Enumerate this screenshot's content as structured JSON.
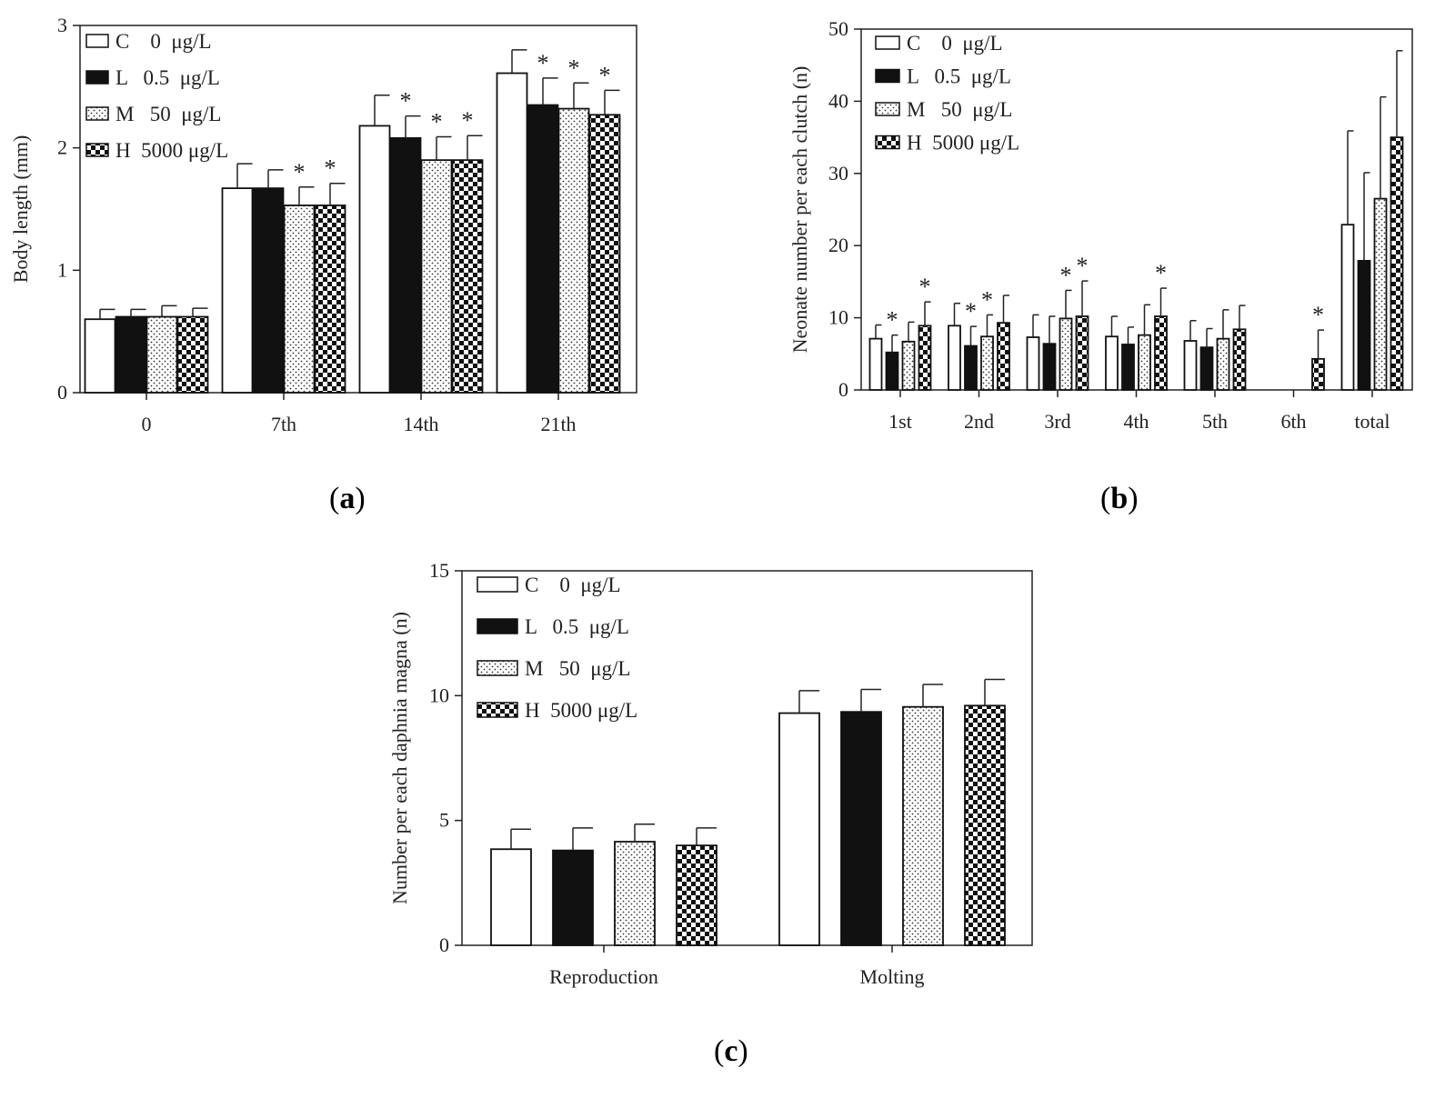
{
  "colors": {
    "axis": "#222222",
    "bar_outline": "#111111",
    "fill_dark": "#111111",
    "fill_light": "#ffffff"
  },
  "legend": [
    {
      "label": "C    0  μg/L",
      "pattern": "white-icon"
    },
    {
      "label": "L   0.5  μg/L",
      "pattern": "black-icon"
    },
    {
      "label": "M   50  μg/L",
      "pattern": "dotted-icon"
    },
    {
      "label": "H  5000 μg/L",
      "pattern": "checker-icon"
    }
  ],
  "panel_labels": {
    "a": {
      "open": "(",
      "letter": "a",
      "close": ")"
    },
    "b": {
      "open": "(",
      "letter": "b",
      "close": ")"
    },
    "c": {
      "open": "(",
      "letter": "c",
      "close": ")"
    }
  },
  "chart_data": [
    {
      "id": "a",
      "type": "bar",
      "ylabel": "Body length (mm)",
      "xlabel": "",
      "ylim": [
        0,
        3
      ],
      "yticks": [
        "0",
        "1",
        "2",
        "3"
      ],
      "categories": [
        "0",
        "7th",
        "14th",
        "21th"
      ],
      "series": [
        {
          "name": "C 0 μg/L",
          "values": [
            0.6,
            1.67,
            2.18,
            2.61
          ],
          "errors": [
            0.08,
            0.2,
            0.25,
            0.19
          ],
          "sig": [
            false,
            false,
            false,
            false
          ]
        },
        {
          "name": "L 0.5 μg/L",
          "values": [
            0.62,
            1.67,
            2.08,
            2.35
          ],
          "errors": [
            0.06,
            0.15,
            0.18,
            0.22
          ],
          "sig": [
            false,
            false,
            true,
            true
          ]
        },
        {
          "name": "M 50 μg/L",
          "values": [
            0.62,
            1.53,
            1.9,
            2.32
          ],
          "errors": [
            0.09,
            0.15,
            0.19,
            0.21
          ],
          "sig": [
            false,
            true,
            true,
            true
          ]
        },
        {
          "name": "H 5000 μg/L",
          "values": [
            0.62,
            1.53,
            1.9,
            2.27
          ],
          "errors": [
            0.07,
            0.18,
            0.2,
            0.2
          ],
          "sig": [
            false,
            true,
            true,
            true
          ]
        }
      ],
      "sig_marker": "*"
    },
    {
      "id": "b",
      "type": "bar",
      "ylabel": "Neonate number per each clutch  (n)",
      "xlabel": "",
      "ylim": [
        0,
        50
      ],
      "yticks": [
        "0",
        "10",
        "20",
        "30",
        "40",
        "50"
      ],
      "categories": [
        "1st",
        "2nd",
        "3rd",
        "4th",
        "5th",
        "6th",
        "total"
      ],
      "series": [
        {
          "name": "C 0 μg/L",
          "values": [
            7.1,
            8.9,
            7.3,
            7.4,
            6.8,
            0,
            22.9
          ],
          "errors": [
            1.9,
            3.1,
            3.1,
            2.8,
            2.8,
            0,
            13.0
          ],
          "sig": [
            false,
            false,
            false,
            false,
            false,
            false,
            false
          ]
        },
        {
          "name": "L 0.5 μg/L",
          "values": [
            5.2,
            6.1,
            6.4,
            6.3,
            5.9,
            0,
            17.9
          ],
          "errors": [
            2.4,
            2.7,
            3.8,
            2.4,
            2.6,
            0,
            12.2
          ],
          "sig": [
            true,
            true,
            false,
            false,
            false,
            false,
            false
          ]
        },
        {
          "name": "M 50 μg/L",
          "values": [
            6.7,
            7.4,
            9.9,
            7.6,
            7.1,
            0,
            26.5
          ],
          "errors": [
            2.7,
            3.0,
            3.9,
            4.2,
            4.0,
            0,
            14.1
          ],
          "sig": [
            false,
            true,
            true,
            false,
            false,
            false,
            false
          ]
        },
        {
          "name": "H 5000 μg/L",
          "values": [
            8.9,
            9.3,
            10.2,
            10.2,
            8.4,
            4.3,
            35.0
          ],
          "errors": [
            3.3,
            3.8,
            4.9,
            3.9,
            3.3,
            4.0,
            12.0
          ],
          "sig": [
            true,
            false,
            true,
            true,
            false,
            true,
            false
          ]
        }
      ],
      "sig_marker": "*"
    },
    {
      "id": "c",
      "type": "bar",
      "ylabel": "Number per each daphnia magna  (n)",
      "xlabel": "",
      "ylim": [
        0,
        15
      ],
      "yticks": [
        "0",
        "5",
        "10",
        "15"
      ],
      "categories": [
        "Reproduction",
        "Molting"
      ],
      "series": [
        {
          "name": "C 0 μg/L",
          "values": [
            3.85,
            9.3
          ],
          "errors": [
            0.8,
            0.9
          ],
          "sig": [
            false,
            false
          ]
        },
        {
          "name": "L 0.5 μg/L",
          "values": [
            3.8,
            9.35
          ],
          "errors": [
            0.9,
            0.9
          ],
          "sig": [
            false,
            false
          ]
        },
        {
          "name": "M 50 μg/L",
          "values": [
            4.15,
            9.55
          ],
          "errors": [
            0.7,
            0.9
          ],
          "sig": [
            false,
            false
          ]
        },
        {
          "name": "H 5000 μg/L",
          "values": [
            4.0,
            9.6
          ],
          "errors": [
            0.7,
            1.05
          ],
          "sig": [
            false,
            false
          ]
        }
      ],
      "sig_marker": "*"
    }
  ]
}
